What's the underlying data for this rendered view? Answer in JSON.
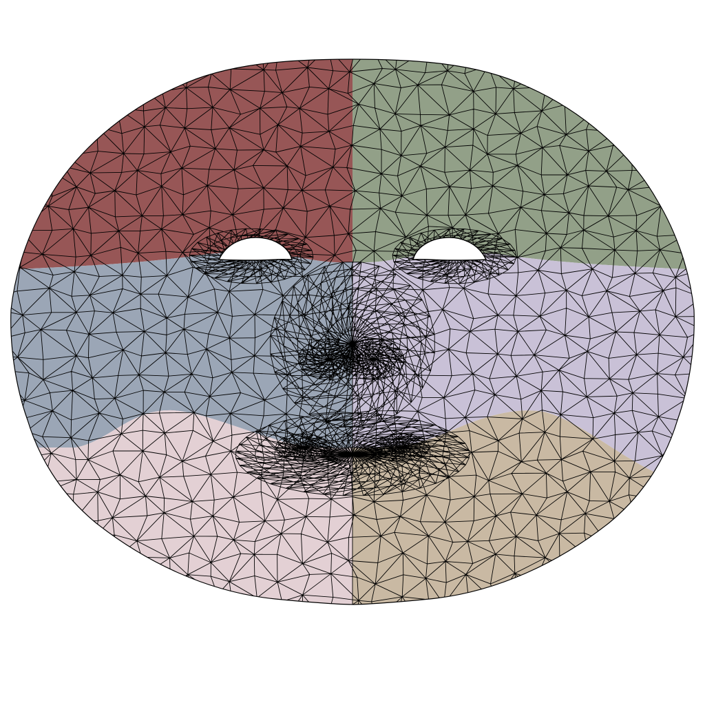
{
  "figure": {
    "background": "#ffffff",
    "wireframe_color": "#000000",
    "regions": [
      {
        "name": "forehead-right",
        "color": "#975656"
      },
      {
        "name": "forehead-left",
        "color": "#92A088"
      },
      {
        "name": "cheek-nose-right",
        "color": "#9BA6B6"
      },
      {
        "name": "cheek-nose-left",
        "color": "#C9C1D7"
      },
      {
        "name": "jaw-mouth-right",
        "color": "#E3D0D4"
      },
      {
        "name": "jaw-mouth-left",
        "color": "#C9B9A3"
      }
    ]
  }
}
